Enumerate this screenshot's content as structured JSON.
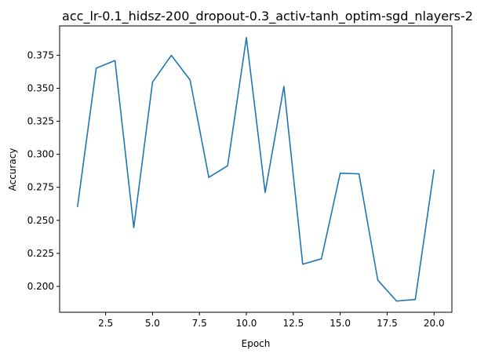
{
  "chart_data": {
    "type": "line",
    "title": "acc_lr-0.1_hidsz-200_dropout-0.3_activ-tanh_optim-sgd_nlayers-2",
    "xlabel": "Epoch",
    "ylabel": "Accuracy",
    "xlim": [
      0.05,
      20.95
    ],
    "ylim": [
      0.1804,
      0.3972
    ],
    "grid": false,
    "x_ticks": [
      2.5,
      5.0,
      7.5,
      10.0,
      12.5,
      15.0,
      17.5,
      20.0
    ],
    "x_tick_labels": [
      "2.5",
      "5.0",
      "7.5",
      "10.0",
      "12.5",
      "15.0",
      "17.5",
      "20.0"
    ],
    "y_ticks": [
      0.2,
      0.225,
      0.25,
      0.275,
      0.3,
      0.325,
      0.35,
      0.375
    ],
    "y_tick_labels": [
      "0.200",
      "0.225",
      "0.250",
      "0.275",
      "0.300",
      "0.325",
      "0.350",
      "0.375"
    ],
    "series": [
      {
        "color": "#1f77b4",
        "x": [
          1,
          2,
          3,
          4,
          5,
          6,
          7,
          8,
          9,
          10,
          11,
          12,
          13,
          14,
          15,
          16,
          17,
          18,
          19,
          20
        ],
        "y": [
          0.2601,
          0.3652,
          0.371,
          0.2445,
          0.3546,
          0.3749,
          0.3563,
          0.2825,
          0.2913,
          0.3883,
          0.2711,
          0.3514,
          0.2168,
          0.2209,
          0.2857,
          0.2852,
          0.2048,
          0.1889,
          0.1901,
          0.2884
        ]
      }
    ]
  }
}
